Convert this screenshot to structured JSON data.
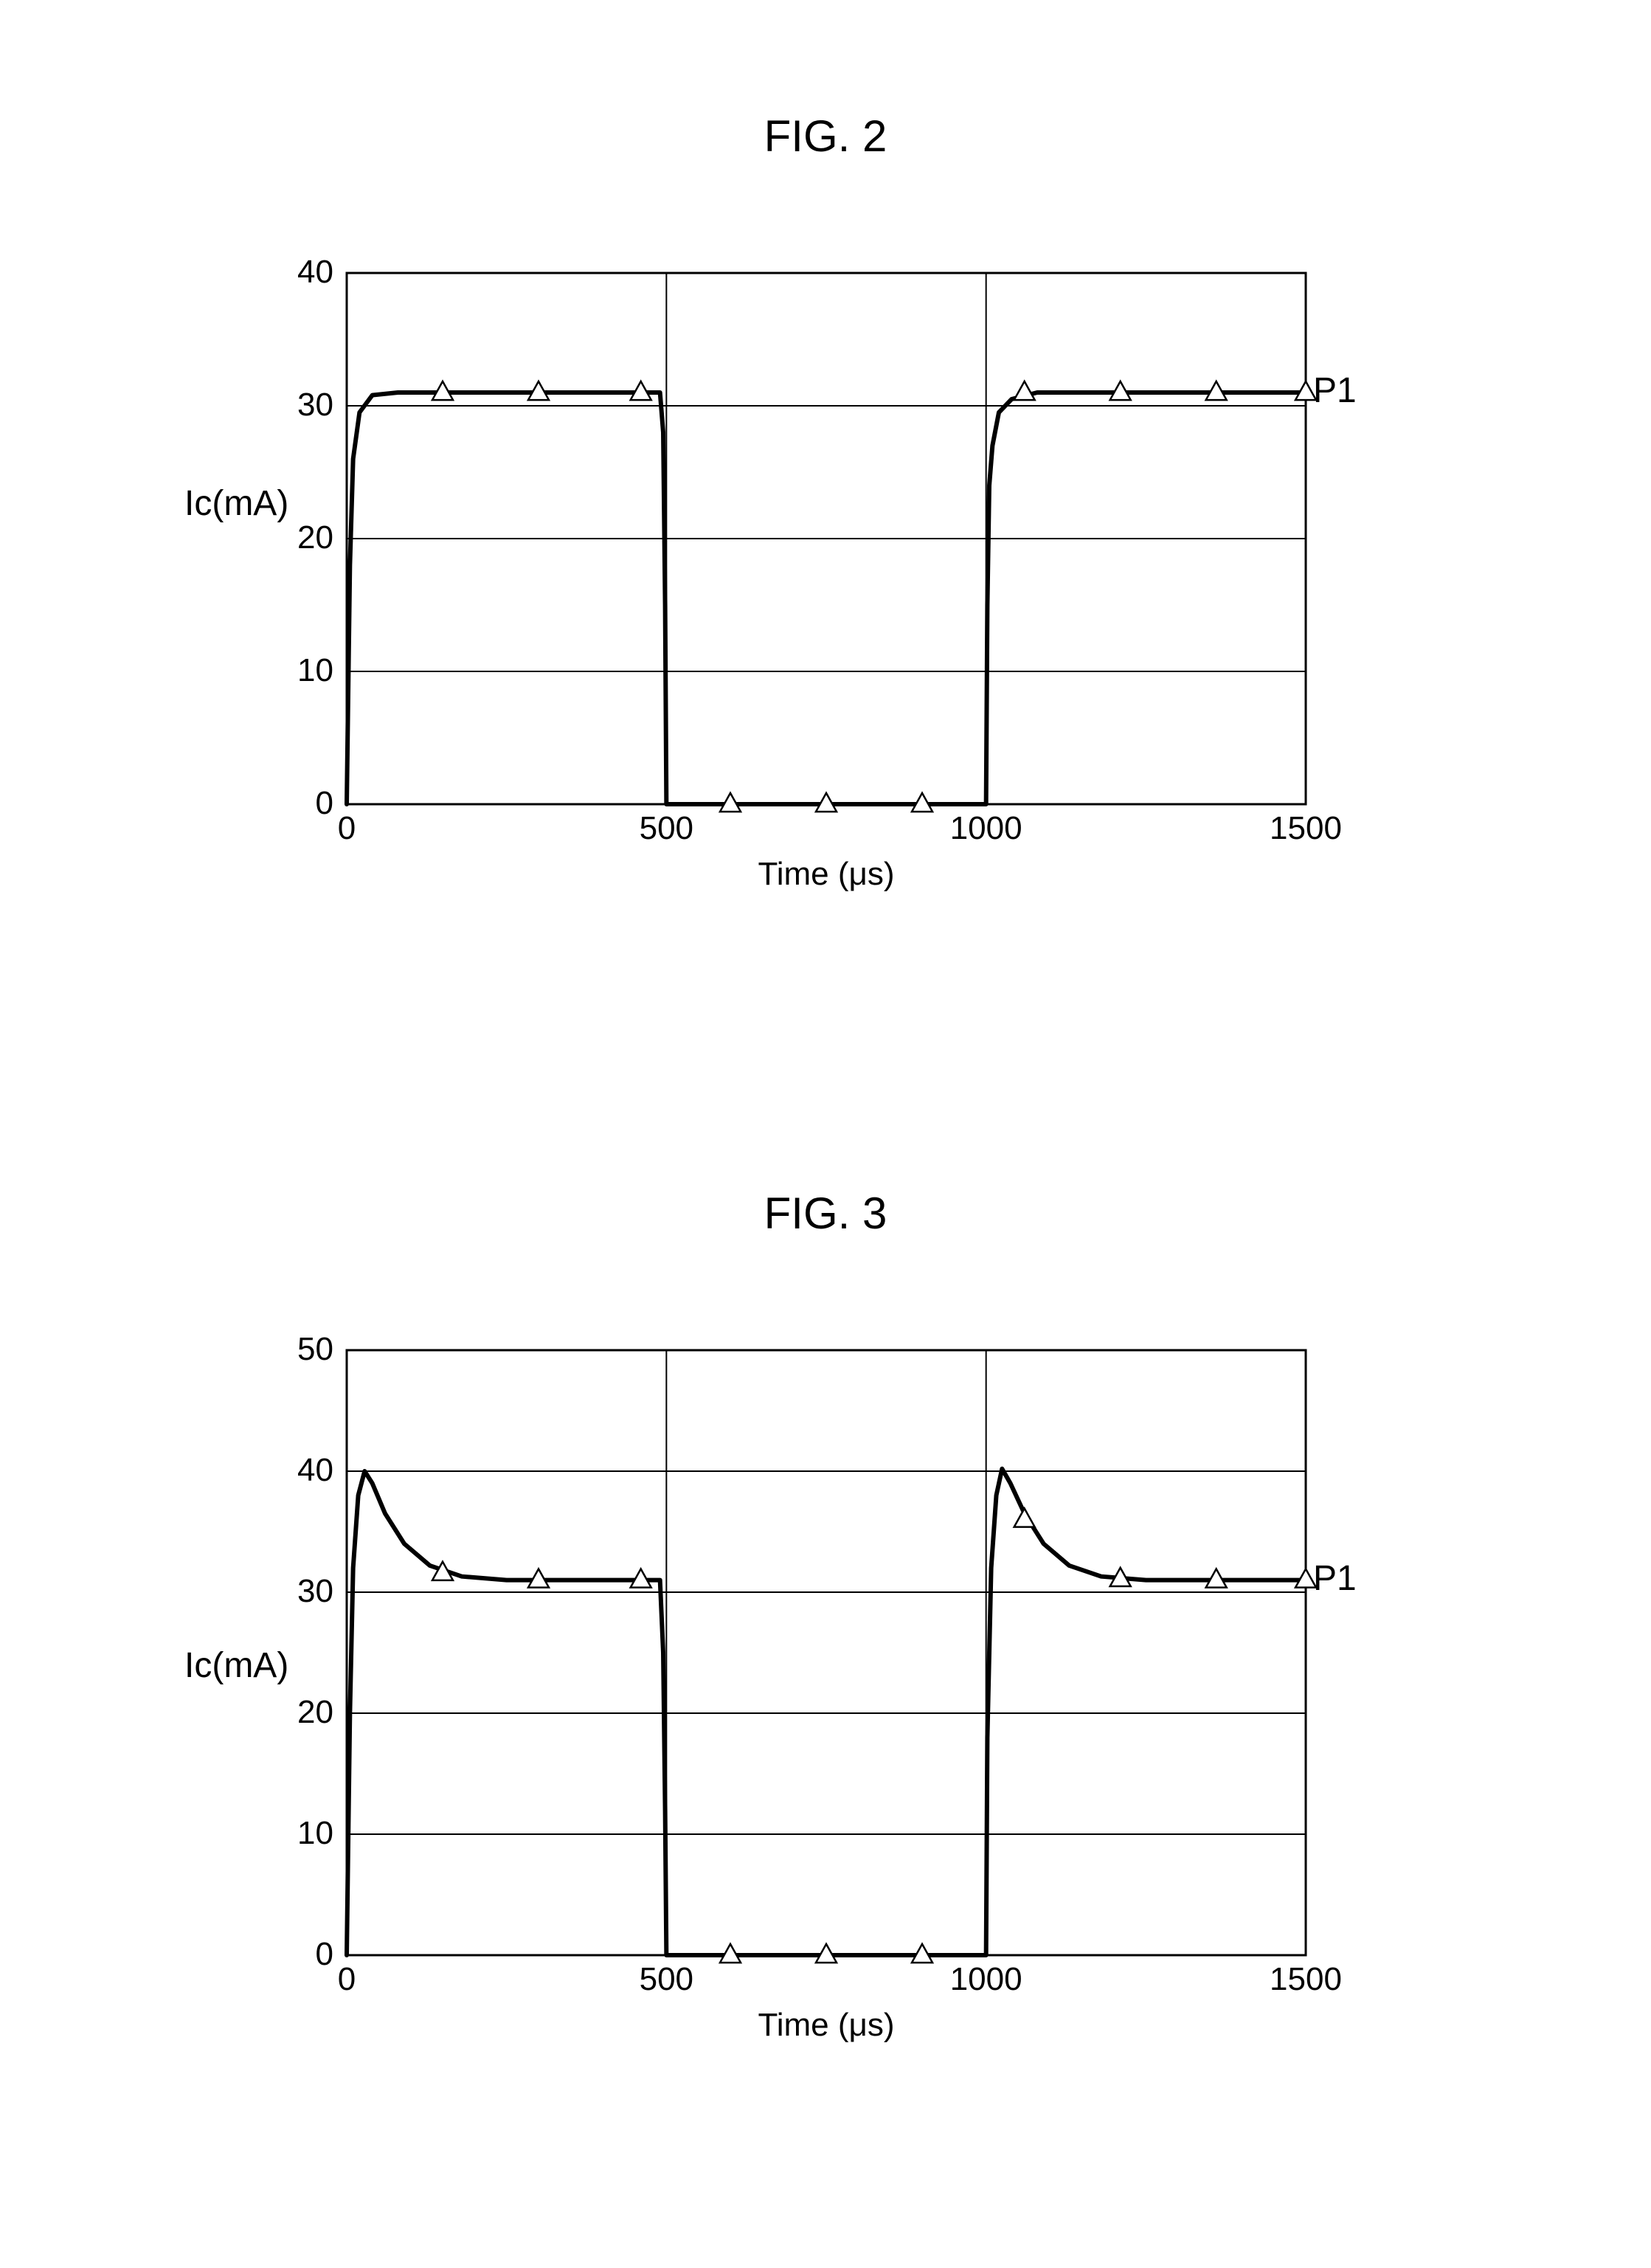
{
  "background_color": "#ffffff",
  "figures": {
    "fig2": {
      "title": "FIG. 2",
      "title_fontsize": 60,
      "ylabel": "Ic(mA)",
      "xlabel": "Time (μs)",
      "label_fontsize": 48,
      "tick_fontsize": 44,
      "xlim": [
        0,
        1500
      ],
      "ylim": [
        0,
        40
      ],
      "xticks": [
        0,
        500,
        1000,
        1500
      ],
      "yticks": [
        0,
        10,
        20,
        30,
        40
      ],
      "grid_color": "#000000",
      "grid_linewidth": 2,
      "border_color": "#000000",
      "border_linewidth": 3,
      "curve_color": "#000000",
      "curve_linewidth": 6,
      "marker_style": "triangle-open",
      "marker_size": 28,
      "marker_color": "#000000",
      "marker_linewidth": 2.5,
      "series_label": "P1",
      "curve": [
        [
          0,
          0
        ],
        [
          5,
          18
        ],
        [
          10,
          26
        ],
        [
          20,
          29.5
        ],
        [
          40,
          30.8
        ],
        [
          80,
          31
        ],
        [
          150,
          31
        ],
        [
          300,
          31
        ],
        [
          460,
          31
        ],
        [
          490,
          31
        ],
        [
          495,
          28
        ],
        [
          498,
          15
        ],
        [
          500,
          0
        ],
        [
          550,
          0
        ],
        [
          750,
          0
        ],
        [
          950,
          0
        ],
        [
          998,
          0
        ],
        [
          1000,
          0
        ],
        [
          1002,
          15
        ],
        [
          1005,
          24
        ],
        [
          1010,
          27
        ],
        [
          1020,
          29.5
        ],
        [
          1040,
          30.5
        ],
        [
          1080,
          31
        ],
        [
          1150,
          31
        ],
        [
          1300,
          31
        ],
        [
          1500,
          31
        ]
      ],
      "markers": [
        [
          150,
          31
        ],
        [
          300,
          31
        ],
        [
          460,
          31
        ],
        [
          600,
          0
        ],
        [
          750,
          0
        ],
        [
          900,
          0
        ],
        [
          1060,
          31
        ],
        [
          1210,
          31
        ],
        [
          1360,
          31
        ],
        [
          1500,
          31
        ]
      ]
    },
    "fig3": {
      "title": "FIG. 3",
      "title_fontsize": 60,
      "ylabel": "Ic(mA)",
      "xlabel": "Time (μs)",
      "label_fontsize": 48,
      "tick_fontsize": 44,
      "xlim": [
        0,
        1500
      ],
      "ylim": [
        0,
        50
      ],
      "xticks": [
        0,
        500,
        1000,
        1500
      ],
      "yticks": [
        0,
        10,
        20,
        30,
        40,
        50
      ],
      "grid_color": "#000000",
      "grid_linewidth": 2,
      "border_color": "#000000",
      "border_linewidth": 3,
      "curve_color": "#000000",
      "curve_linewidth": 6,
      "marker_style": "triangle-open",
      "marker_size": 28,
      "marker_color": "#000000",
      "marker_linewidth": 2.5,
      "series_label": "P1",
      "curve": [
        [
          0,
          0
        ],
        [
          5,
          20
        ],
        [
          10,
          32
        ],
        [
          18,
          38
        ],
        [
          28,
          40
        ],
        [
          40,
          39
        ],
        [
          60,
          36.5
        ],
        [
          90,
          34
        ],
        [
          130,
          32.2
        ],
        [
          180,
          31.3
        ],
        [
          250,
          31
        ],
        [
          350,
          31
        ],
        [
          460,
          31
        ],
        [
          490,
          31
        ],
        [
          495,
          25
        ],
        [
          498,
          12
        ],
        [
          500,
          0
        ],
        [
          550,
          0
        ],
        [
          750,
          0
        ],
        [
          950,
          0
        ],
        [
          998,
          0
        ],
        [
          1000,
          0
        ],
        [
          1002,
          18
        ],
        [
          1008,
          32
        ],
        [
          1016,
          38
        ],
        [
          1025,
          40.2
        ],
        [
          1038,
          39
        ],
        [
          1060,
          36.5
        ],
        [
          1090,
          34
        ],
        [
          1130,
          32.2
        ],
        [
          1180,
          31.3
        ],
        [
          1250,
          31
        ],
        [
          1350,
          31
        ],
        [
          1500,
          31
        ]
      ],
      "markers": [
        [
          150,
          31.6
        ],
        [
          300,
          31
        ],
        [
          460,
          31
        ],
        [
          600,
          0
        ],
        [
          750,
          0
        ],
        [
          900,
          0
        ],
        [
          1060,
          36
        ],
        [
          1210,
          31.1
        ],
        [
          1360,
          31
        ],
        [
          1500,
          31
        ]
      ]
    }
  }
}
